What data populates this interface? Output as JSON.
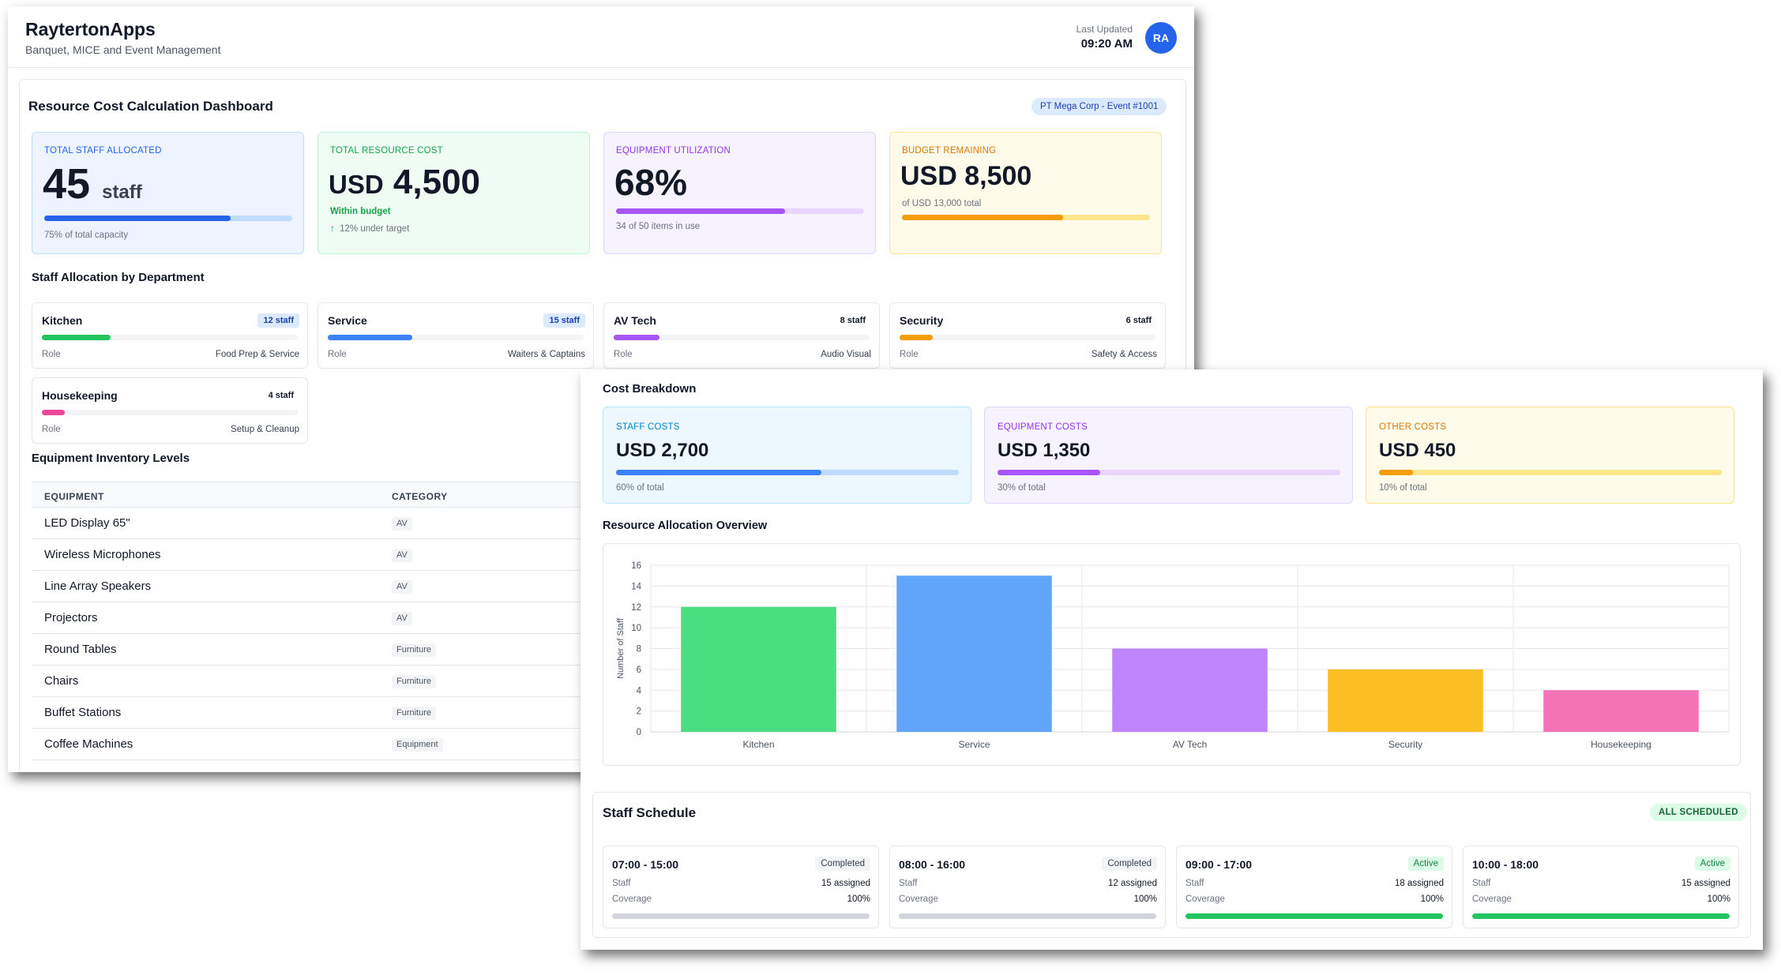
{
  "header": {
    "brand": "RaytertonApps",
    "tagline": "Banquet, MICE and Event Management",
    "last_updated_label": "Last Updated",
    "last_updated_time": "09:20 AM",
    "avatar_initials": "RA"
  },
  "dashboard": {
    "title": "Resource Cost Calculation Dashboard",
    "event_chip": "PT Mega Corp - Event #1001"
  },
  "kpis": {
    "staff": {
      "label": "TOTAL STAFF ALLOCATED",
      "value": "45",
      "unit": "staff",
      "progress": 0.75,
      "note": "75% of total capacity"
    },
    "resource_cost": {
      "label": "TOTAL RESOURCE COST",
      "currency": "USD",
      "value": "4,500",
      "status": "Within budget",
      "trend": "12% under target"
    },
    "equipment": {
      "label": "EQUIPMENT UTILIZATION",
      "value": "68%",
      "progress": 0.68,
      "note": "34 of 50 items in use"
    },
    "budget": {
      "label": "BUDGET REMAINING",
      "currency": "USD",
      "value": "8,500",
      "note": "of USD 13,000 total",
      "progress": 0.65
    }
  },
  "staff_allocation": {
    "title": "Staff Allocation by Department",
    "role_label": "Role",
    "departments": [
      {
        "name": "Kitchen",
        "count": "12 staff",
        "role": "Food Prep & Service",
        "fill": 0.27,
        "color": "#22c55e"
      },
      {
        "name": "Service",
        "count": "15 staff",
        "role": "Waiters & Captains",
        "fill": 0.33,
        "color": "#3b82f6"
      },
      {
        "name": "AV Tech",
        "count": "8 staff",
        "role": "Audio Visual",
        "fill": 0.18,
        "color": "#a855f7"
      },
      {
        "name": "Security",
        "count": "6 staff",
        "role": "Safety & Access",
        "fill": 0.13,
        "color": "#f59e0b"
      },
      {
        "name": "Housekeeping",
        "count": "4 staff",
        "role": "Setup & Cleanup",
        "fill": 0.09,
        "color": "#ec4899"
      }
    ]
  },
  "inventory": {
    "title": "Equipment Inventory Levels",
    "columns": [
      "EQUIPMENT",
      "CATEGORY"
    ],
    "rows": [
      {
        "equipment": "LED Display 65\"",
        "category": "AV"
      },
      {
        "equipment": "Wireless Microphones",
        "category": "AV"
      },
      {
        "equipment": "Line Array Speakers",
        "category": "AV"
      },
      {
        "equipment": "Projectors",
        "category": "AV"
      },
      {
        "equipment": "Round Tables",
        "category": "Furniture"
      },
      {
        "equipment": "Chairs",
        "category": "Furniture"
      },
      {
        "equipment": "Buffet Stations",
        "category": "Furniture"
      },
      {
        "equipment": "Coffee Machines",
        "category": "Equipment"
      }
    ]
  },
  "cost_breakdown": {
    "title": "Cost Breakdown",
    "items": [
      {
        "label": "STAFF COSTS",
        "value": "USD 2,700",
        "note": "60% of total",
        "share": 0.6
      },
      {
        "label": "EQUIPMENT COSTS",
        "value": "USD 1,350",
        "note": "30% of total",
        "share": 0.3
      },
      {
        "label": "OTHER COSTS",
        "value": "USD 450",
        "note": "10% of total",
        "share": 0.1
      }
    ]
  },
  "chart_data": {
    "type": "bar",
    "title": "Resource Allocation Overview",
    "categories": [
      "Kitchen",
      "Service",
      "AV Tech",
      "Security",
      "Housekeeping"
    ],
    "values": [
      12,
      15,
      8,
      6,
      4
    ],
    "colors": [
      "#4ade80",
      "#60a5fa",
      "#c084fc",
      "#fbbf24",
      "#f472b6"
    ],
    "xlabel": "",
    "ylabel": "Number of Staff",
    "ylim": [
      0,
      16
    ],
    "yticks": [
      0,
      2,
      4,
      6,
      8,
      10,
      12,
      14,
      16
    ],
    "grid": true,
    "legend": "none"
  },
  "schedule": {
    "title": "Staff Schedule",
    "badge": "ALL SCHEDULED",
    "staff_label": "Staff",
    "coverage_label": "Coverage",
    "shifts": [
      {
        "time": "07:00 - 15:00",
        "status": "Completed",
        "assigned": "15 assigned",
        "coverage": "100%",
        "active": false
      },
      {
        "time": "08:00 - 16:00",
        "status": "Completed",
        "assigned": "12 assigned",
        "coverage": "100%",
        "active": false
      },
      {
        "time": "09:00 - 17:00",
        "status": "Active",
        "assigned": "18 assigned",
        "coverage": "100%",
        "active": true
      },
      {
        "time": "10:00 - 18:00",
        "status": "Active",
        "assigned": "15 assigned",
        "coverage": "100%",
        "active": true
      }
    ]
  }
}
